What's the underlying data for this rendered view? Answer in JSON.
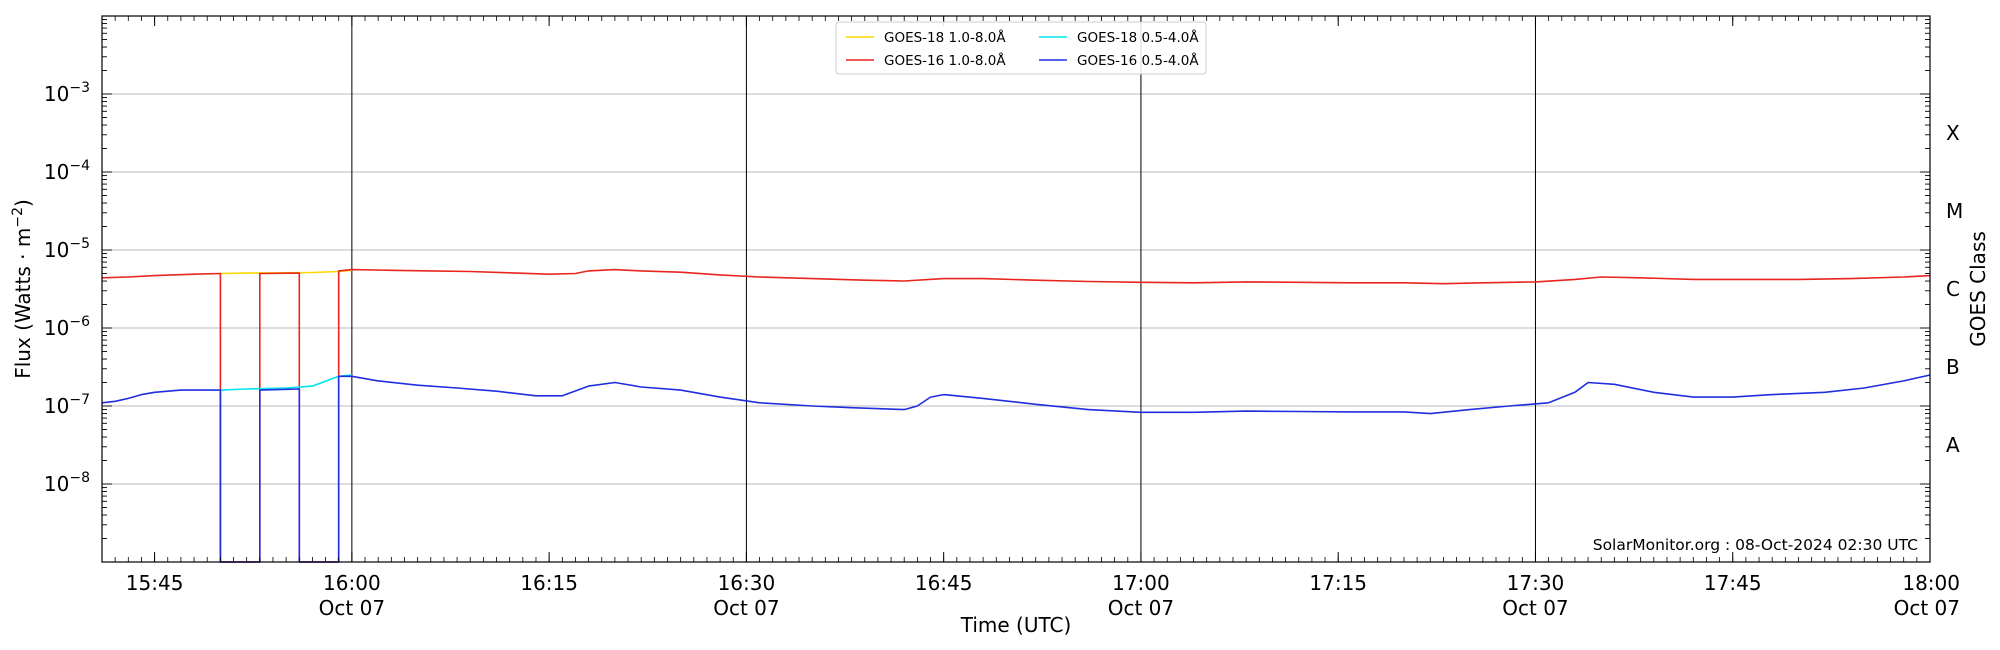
{
  "chart_data": {
    "type": "line",
    "xlabel": "Time (UTC)",
    "ylabel": "Flux (Watts · m⁻²)",
    "ylabel_right": "GOES Class",
    "watermark": "SolarMonitor.org : 08-Oct-2024 02:30 UTC",
    "y_scale": "log",
    "ylim": [
      1e-09,
      0.01
    ],
    "xlim": [
      "2024-10-07 15:41",
      "2024-10-07 18:00"
    ],
    "grid": true,
    "legend_position": "top-center",
    "x_ticks": [
      {
        "time": "15:45",
        "label": "15:45",
        "sublabel": ""
      },
      {
        "time": "16:00",
        "label": "16:00",
        "sublabel": "Oct 07"
      },
      {
        "time": "16:15",
        "label": "16:15",
        "sublabel": ""
      },
      {
        "time": "16:30",
        "label": "16:30",
        "sublabel": "Oct 07"
      },
      {
        "time": "16:45",
        "label": "16:45",
        "sublabel": ""
      },
      {
        "time": "17:00",
        "label": "17:00",
        "sublabel": "Oct 07"
      },
      {
        "time": "17:15",
        "label": "17:15",
        "sublabel": ""
      },
      {
        "time": "17:30",
        "label": "17:30",
        "sublabel": "Oct 07"
      },
      {
        "time": "17:45",
        "label": "17:45",
        "sublabel": ""
      },
      {
        "time": "18:00",
        "label": "18:00",
        "sublabel": "Oct 07"
      }
    ],
    "y_ticks": [
      {
        "exponent": -3,
        "label": "10",
        "sup": "−3"
      },
      {
        "exponent": -4,
        "label": "10",
        "sup": "−4"
      },
      {
        "exponent": -5,
        "label": "10",
        "sup": "−5"
      },
      {
        "exponent": -6,
        "label": "10",
        "sup": "−6"
      },
      {
        "exponent": -7,
        "label": "10",
        "sup": "−7"
      },
      {
        "exponent": -8,
        "label": "10",
        "sup": "−8"
      }
    ],
    "goes_classes": [
      {
        "label": "X",
        "exponent": -4
      },
      {
        "label": "M",
        "exponent": -5
      },
      {
        "label": "C",
        "exponent": -6
      },
      {
        "label": "B",
        "exponent": -7
      },
      {
        "label": "A",
        "exponent": -8
      }
    ],
    "vertical_lines": [
      "16:00",
      "16:30",
      "17:00",
      "17:30",
      "18:00"
    ],
    "series": [
      {
        "name": "GOES-18 1.0-8.0Å",
        "color": "#ffd700",
        "points": [
          [
            "15:50",
            5e-06
          ],
          [
            "15:52",
            5.05e-06
          ],
          [
            "15:55",
            5.1e-06
          ],
          [
            "15:57",
            5.15e-06
          ],
          [
            "15:59",
            5.3e-06
          ],
          [
            "16:00",
            5.5e-06
          ]
        ]
      },
      {
        "name": "GOES-16 1.0-8.0Å",
        "color": "#e8251e",
        "points": [
          [
            "15:41",
            4.4e-06
          ],
          [
            "15:43",
            4.5e-06
          ],
          [
            "15:45",
            4.7e-06
          ],
          [
            "15:48",
            4.9e-06
          ],
          [
            "15:50",
            5e-06
          ],
          [
            "15:50",
            1e-09
          ],
          [
            "15:53",
            1e-09
          ],
          [
            "15:53",
            5e-06
          ],
          [
            "15:56",
            5.05e-06
          ],
          [
            "15:56",
            1e-09
          ],
          [
            "15:59",
            1e-09
          ],
          [
            "15:59",
            5.4e-06
          ],
          [
            "16:00",
            5.6e-06
          ],
          [
            "16:03",
            5.5e-06
          ],
          [
            "16:06",
            5.4e-06
          ],
          [
            "16:09",
            5.3e-06
          ],
          [
            "16:12",
            5.1e-06
          ],
          [
            "16:15",
            4.9e-06
          ],
          [
            "16:17",
            5e-06
          ],
          [
            "16:18",
            5.4e-06
          ],
          [
            "16:20",
            5.6e-06
          ],
          [
            "16:22",
            5.4e-06
          ],
          [
            "16:25",
            5.2e-06
          ],
          [
            "16:28",
            4.8e-06
          ],
          [
            "16:31",
            4.5e-06
          ],
          [
            "16:35",
            4.3e-06
          ],
          [
            "16:39",
            4.1e-06
          ],
          [
            "16:42",
            4e-06
          ],
          [
            "16:45",
            4.3e-06
          ],
          [
            "16:48",
            4.3e-06
          ],
          [
            "16:52",
            4.1e-06
          ],
          [
            "16:56",
            3.95e-06
          ],
          [
            "17:00",
            3.85e-06
          ],
          [
            "17:04",
            3.8e-06
          ],
          [
            "17:08",
            3.9e-06
          ],
          [
            "17:12",
            3.85e-06
          ],
          [
            "17:16",
            3.8e-06
          ],
          [
            "17:20",
            3.8e-06
          ],
          [
            "17:23",
            3.7e-06
          ],
          [
            "17:26",
            3.8e-06
          ],
          [
            "17:30",
            3.9e-06
          ],
          [
            "17:33",
            4.2e-06
          ],
          [
            "17:35",
            4.5e-06
          ],
          [
            "17:38",
            4.4e-06
          ],
          [
            "17:42",
            4.2e-06
          ],
          [
            "17:46",
            4.2e-06
          ],
          [
            "17:50",
            4.2e-06
          ],
          [
            "17:54",
            4.3e-06
          ],
          [
            "17:58",
            4.5e-06
          ],
          [
            "18:00",
            4.7e-06
          ]
        ]
      },
      {
        "name": "GOES-18 0.5-4.0Å",
        "color": "#00e5ee",
        "points": [
          [
            "15:50",
            1.6e-07
          ],
          [
            "15:52",
            1.65e-07
          ],
          [
            "15:55",
            1.7e-07
          ],
          [
            "15:57",
            1.8e-07
          ],
          [
            "15:59",
            2.4e-07
          ],
          [
            "16:00",
            2.5e-07
          ]
        ]
      },
      {
        "name": "GOES-16 0.5-4.0Å",
        "color": "#1f2fe0",
        "points": [
          [
            "15:41",
            1.1e-07
          ],
          [
            "15:42",
            1.15e-07
          ],
          [
            "15:43",
            1.25e-07
          ],
          [
            "15:44",
            1.4e-07
          ],
          [
            "15:45",
            1.5e-07
          ],
          [
            "15:47",
            1.6e-07
          ],
          [
            "15:50",
            1.6e-07
          ],
          [
            "15:50",
            1e-09
          ],
          [
            "15:53",
            1e-09
          ],
          [
            "15:53",
            1.6e-07
          ],
          [
            "15:56",
            1.65e-07
          ],
          [
            "15:56",
            1e-09
          ],
          [
            "15:59",
            1e-09
          ],
          [
            "15:59",
            2.4e-07
          ],
          [
            "16:00",
            2.4e-07
          ],
          [
            "16:02",
            2.1e-07
          ],
          [
            "16:05",
            1.85e-07
          ],
          [
            "16:08",
            1.7e-07
          ],
          [
            "16:11",
            1.55e-07
          ],
          [
            "16:14",
            1.35e-07
          ],
          [
            "16:16",
            1.35e-07
          ],
          [
            "16:18",
            1.8e-07
          ],
          [
            "16:20",
            2e-07
          ],
          [
            "16:22",
            1.75e-07
          ],
          [
            "16:25",
            1.6e-07
          ],
          [
            "16:28",
            1.3e-07
          ],
          [
            "16:31",
            1.1e-07
          ],
          [
            "16:35",
            1e-07
          ],
          [
            "16:38",
            9.5e-08
          ],
          [
            "16:42",
            9e-08
          ],
          [
            "16:43",
            1e-07
          ],
          [
            "16:44",
            1.3e-07
          ],
          [
            "16:45",
            1.4e-07
          ],
          [
            "16:48",
            1.25e-07
          ],
          [
            "16:52",
            1.05e-07
          ],
          [
            "16:56",
            9e-08
          ],
          [
            "17:00",
            8.3e-08
          ],
          [
            "17:04",
            8.3e-08
          ],
          [
            "17:08",
            8.6e-08
          ],
          [
            "17:12",
            8.5e-08
          ],
          [
            "17:16",
            8.4e-08
          ],
          [
            "17:20",
            8.4e-08
          ],
          [
            "17:22",
            8e-08
          ],
          [
            "17:25",
            9e-08
          ],
          [
            "17:28",
            1e-07
          ],
          [
            "17:31",
            1.1e-07
          ],
          [
            "17:33",
            1.5e-07
          ],
          [
            "17:34",
            2e-07
          ],
          [
            "17:36",
            1.9e-07
          ],
          [
            "17:39",
            1.5e-07
          ],
          [
            "17:42",
            1.3e-07
          ],
          [
            "17:45",
            1.3e-07
          ],
          [
            "17:48",
            1.4e-07
          ],
          [
            "17:52",
            1.5e-07
          ],
          [
            "17:55",
            1.7e-07
          ],
          [
            "17:58",
            2.1e-07
          ],
          [
            "18:00",
            2.5e-07
          ]
        ]
      }
    ]
  }
}
